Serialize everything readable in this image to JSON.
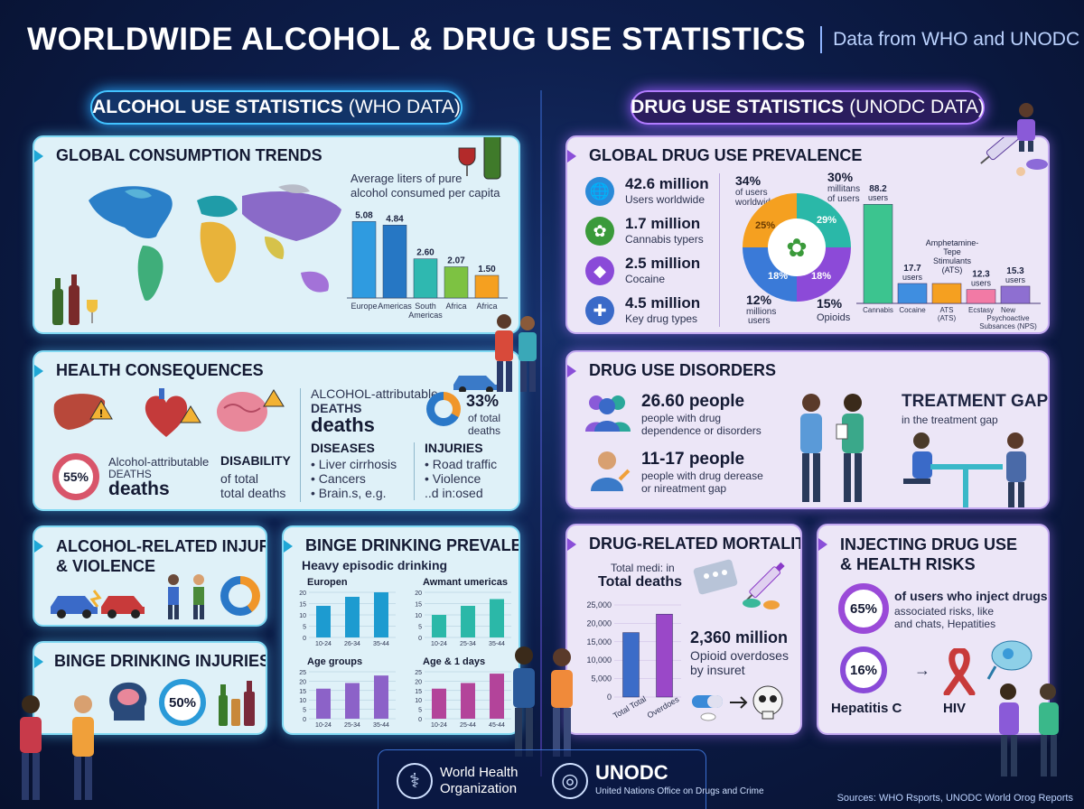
{
  "header": {
    "title": "WORLDWIDE ALCOHOL & DRUG USE STATISTICS",
    "subtitle": "Data from WHO and UNODC"
  },
  "alcohol": {
    "section_label": "ALCOHOL USE STATISTICS",
    "section_source": "(WHO DATA)",
    "consumption": {
      "title": "GLOBAL CONSUMPTION TRENDS",
      "chart_caption_1": "Average liters of pure",
      "chart_caption_2": "alcohol consumed per capita"
    },
    "health": {
      "title": "HEALTH CONSEQUENCES",
      "ring_value": "55%",
      "deaths_label_1": "Alcohol-attributable",
      "deaths_label_2": "DEATHS",
      "deaths_word": "deaths",
      "disability_title": "DISABILITY",
      "disability_1": "of total",
      "disability_2": "total deaths",
      "attrib_1": "ALCOHOL-attributable",
      "attrib_2": "DEATHS",
      "attrib_3": "deaths",
      "pct_value": "33%",
      "pct_label_1": "of total",
      "pct_label_2": "deaths",
      "diseases_title": "DISEASES",
      "disease_1": "• Liver cirrhosis",
      "disease_2": "• Cancers",
      "disease_3": "• Brain.s, e.g.",
      "injuries_title": "INJURIES",
      "injury_1": "• Road traffic",
      "injury_2": "• Violence",
      "injury_3": "..d in:osed"
    },
    "injuries": {
      "title_1": "ALCOHOL-RELATED INJURIES",
      "title_2": "& VIOLENCE"
    },
    "binge_injuries": {
      "title": "BINGE DRINKING INJURIES",
      "ring_value": "50%"
    },
    "binge": {
      "title": "BINGE DRINKING PREVALENCE",
      "subtitle": "Heavy episodic drinking"
    }
  },
  "drug": {
    "section_label": "DRUG USE STATISTICS",
    "section_source": "(UNODC DATA)",
    "prevalence": {
      "title": "GLOBAL DRUG USE PREVALENCE",
      "stats": [
        {
          "value": "42.6 million",
          "label": "Users worldwide",
          "icon": "globe-icon"
        },
        {
          "value": "1.7 million",
          "label": "Cannabis typers",
          "icon": "cannabis-leaf-icon"
        },
        {
          "value": "2.5 million",
          "label": "Cocaine",
          "icon": "powder-icon"
        },
        {
          "value": "4.5 million",
          "label": "Key drug types",
          "icon": "pills-icon"
        }
      ],
      "donut_labels": {
        "tl_value": "34%",
        "tl_label_1": "of users",
        "tl_label_2": "worldwide",
        "tr_value": "30%",
        "tr_label_1": "millitans",
        "tr_label_2": "of users",
        "bl_value": "12%",
        "bl_label_1": "millions",
        "bl_label_2": "users",
        "br_value": "15%",
        "br_label": "Opioids",
        "seg_1": "25%",
        "seg_2": "29%",
        "seg_3": "18%",
        "seg_4": "18%"
      }
    },
    "disorders": {
      "title": "DRUG USE DISORDERS",
      "stat1_value": "26.60 people",
      "stat1_label_1": "people with drug",
      "stat1_label_2": "dependence or disorders",
      "stat2_value": "11-17 people",
      "stat2_label_1": "people with drug derease",
      "stat2_label_2": "or nireatment gap",
      "gap_title": "TREATMENT GAP",
      "gap_label": "in the treatment gap"
    },
    "mortality": {
      "title": "DRUG-RELATED MORTALITY",
      "chart_caption_1": "Total medi: in",
      "chart_caption_2": "Total deaths",
      "overdose_value": "2,360 million",
      "overdose_label_1": "Opioid overdoses",
      "overdose_label_2": "by insuret"
    },
    "injecting": {
      "title_1": "INJECTING DRUG USE",
      "title_2": "& HEALTH RISKS",
      "ring_value": "65%",
      "ring_label_1": "of users who inject drugs",
      "ring_label_2": "associated risks, like",
      "ring_label_3": "and chats, Hepatities",
      "hep_value": "16%",
      "hep_label": "Hepatitis C",
      "hiv_label": "HIV",
      "arrow": "→"
    }
  },
  "footer": {
    "who_1": "World Health",
    "who_2": "Organization",
    "unodc": "UNODC",
    "unodc_sub": "United Nations Office on Drugs and Crime",
    "sources": "Sources: WHO Rsports, UNODC World Orog Reports"
  },
  "chart_data": [
    {
      "type": "bar",
      "categories": [
        "Europe",
        "Americas",
        "South Americas",
        "Africa",
        "Africa"
      ],
      "values": [
        5.08,
        4.84,
        2.6,
        2.07,
        1.5
      ],
      "value_labels": [
        "5.08",
        "4.84",
        "2.60",
        "2.07",
        "1.50"
      ],
      "colors": [
        "#2f9be0",
        "#2677c4",
        "#2fb8b0",
        "#7dc242",
        "#f5a020"
      ]
    },
    {
      "type": "bar",
      "categories": [
        "Cannabis",
        "Cocaine",
        "ATS (ATS)",
        "Ecstasy",
        "New Psychoactive Subsances (NPS)"
      ],
      "values": [
        88.2,
        17.7,
        17.7,
        12.3,
        15.3
      ],
      "value_labels": [
        "88.2 users",
        "17.7 users",
        "Amphetamine-Tepe Stimulants (ATS)",
        "12.3 users",
        "15.3 users"
      ],
      "colors": [
        "#3cc48f",
        "#3f8ee0",
        "#f5a020",
        "#f27aa5",
        "#8e6fd1"
      ]
    },
    {
      "type": "bar",
      "title": "Europen",
      "categories": [
        "10-24",
        "26-34",
        "35-44"
      ],
      "values": [
        14,
        18,
        20
      ],
      "ylim": [
        0,
        20
      ],
      "yticks": [
        "0",
        "5",
        "10",
        "15",
        "20"
      ],
      "color": "#1d9bd0"
    },
    {
      "type": "bar",
      "title": "Awmant umericas",
      "categories": [
        "10-24",
        "25-34",
        "35-44"
      ],
      "values": [
        10,
        14,
        17
      ],
      "ylim": [
        0,
        20
      ],
      "yticks": [
        "0",
        "5",
        "10",
        "15",
        "20"
      ],
      "color": "#2bb8a8"
    },
    {
      "type": "bar",
      "title": "Age groups",
      "categories": [
        "10-24",
        "25-34",
        "35-44"
      ],
      "values": [
        16,
        19,
        23
      ],
      "ylim": [
        0,
        25
      ],
      "yticks": [
        "0",
        "5",
        "10",
        "15",
        "20",
        "25"
      ],
      "color": "#8c62c8"
    },
    {
      "type": "bar",
      "title": "Age & 1 days",
      "categories": [
        "10-24",
        "25-44",
        "45-44"
      ],
      "values": [
        16,
        19,
        24
      ],
      "ylim": [
        0,
        25
      ],
      "yticks": [
        "0",
        "5",
        "10",
        "15",
        "20",
        "25"
      ],
      "color": "#b3449a"
    },
    {
      "type": "bar",
      "categories": [
        "Total Total",
        "Overdoes"
      ],
      "values": [
        17500,
        22500
      ],
      "ylim": [
        0,
        25000
      ],
      "yticks": [
        "0",
        "5,000",
        "10,000",
        "15,000",
        "20,000",
        "25,000"
      ],
      "colors": [
        "#3c6cc8",
        "#9a48c8"
      ]
    }
  ]
}
